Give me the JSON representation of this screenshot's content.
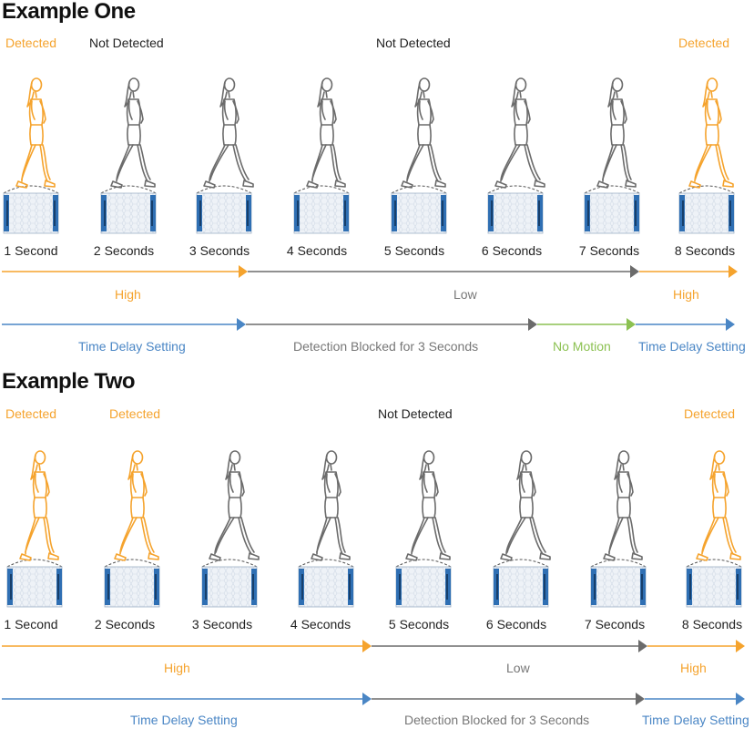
{
  "colors": {
    "orange": "#f5a32d",
    "gray": "#6b6b6b",
    "blue": "#4a86c5",
    "green": "#8cc152",
    "sensor_blue": "#2f6fb3",
    "sensor_fill": "#e8eef5"
  },
  "icons": [
    "walking-person-icon",
    "pir-sensor-icon",
    "detection-cone-icon"
  ],
  "example_one": {
    "title": "Example One",
    "status_labels": [
      "Detected",
      "Not Detected",
      "Not Detected",
      "Detected"
    ],
    "frames": [
      {
        "time": "1 Second",
        "detected": true
      },
      {
        "time": "2 Seconds",
        "detected": false
      },
      {
        "time": "3 Seconds",
        "detected": false
      },
      {
        "time": "4 Seconds",
        "detected": false
      },
      {
        "time": "5 Seconds",
        "detected": false
      },
      {
        "time": "6 Seconds",
        "detected": false
      },
      {
        "time": "7 Seconds",
        "detected": false
      },
      {
        "time": "8 Seconds",
        "detected": true
      }
    ],
    "output_segments": [
      "High",
      "Low",
      "High"
    ],
    "timing_segments": [
      "Time Delay Setting",
      "Detection Blocked for 3 Seconds",
      "No Motion",
      "Time Delay Setting"
    ]
  },
  "example_two": {
    "title": "Example Two",
    "status_labels": [
      "Detected",
      "Detected",
      "Not Detected",
      "Detected"
    ],
    "frames": [
      {
        "time": "1 Second",
        "detected": true
      },
      {
        "time": "2 Seconds",
        "detected": true
      },
      {
        "time": "3 Seconds",
        "detected": false
      },
      {
        "time": "4 Seconds",
        "detected": false
      },
      {
        "time": "5 Seconds",
        "detected": false
      },
      {
        "time": "6 Seconds",
        "detected": false
      },
      {
        "time": "7 Seconds",
        "detected": false
      },
      {
        "time": "8 Seconds",
        "detected": true
      }
    ],
    "output_segments": [
      "High",
      "Low",
      "High"
    ],
    "timing_segments": [
      "Time Delay Setting",
      "Detection Blocked for 3 Seconds",
      "Time Delay Setting"
    ]
  }
}
